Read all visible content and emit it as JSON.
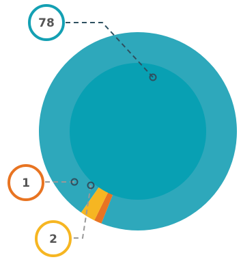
{
  "chart_data": {
    "type": "pie",
    "title": "",
    "total": 81,
    "slices": [
      {
        "label": "78",
        "value": 78,
        "color": "#2ea8bb"
      },
      {
        "label": "1",
        "value": 1,
        "color": "#e87422"
      },
      {
        "label": "2",
        "value": 2,
        "color": "#f6b622"
      }
    ],
    "inner_disc_color": "#08a0b3",
    "callout_dot_color": "#2e5060",
    "leader_color": "#999999",
    "legend": "callouts",
    "grid": false
  }
}
